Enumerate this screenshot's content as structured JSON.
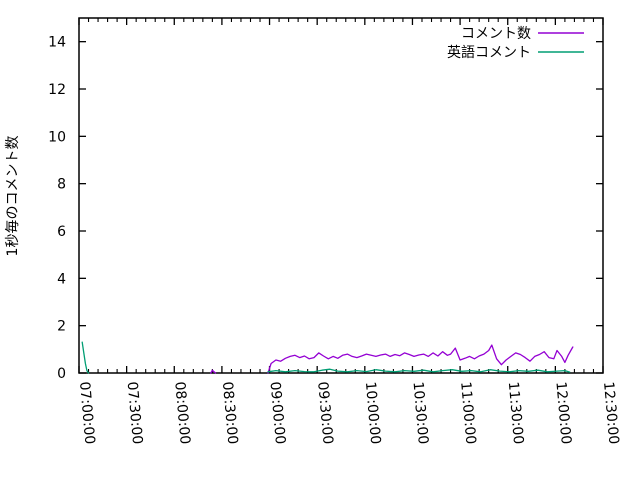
{
  "chart_data": {
    "type": "line",
    "title": "",
    "ylabel": "1秒毎のコメント数",
    "xlabel": "",
    "background_color": "#ffffff",
    "axis_color": "#000000",
    "grid": false,
    "legend": {
      "position": "top-right-inside",
      "entries": [
        "コメント数",
        "英語コメント"
      ]
    },
    "x_axis": {
      "unit": "time",
      "range_minutes": [
        0,
        330
      ],
      "tick_minutes": [
        0,
        30,
        60,
        90,
        120,
        150,
        180,
        210,
        240,
        270,
        300,
        330
      ],
      "tick_labels": [
        "07:00:00",
        "07:30:00",
        "08:00:00",
        "08:30:00",
        "09:00:00",
        "09:30:00",
        "10:00:00",
        "10:30:00",
        "11:00:00",
        "11:30:00",
        "12:00:00",
        "12:30:00"
      ],
      "minor_step_minutes": 6,
      "label_rotation_deg": 85
    },
    "y_axis": {
      "range": [
        0,
        15
      ],
      "ticks": [
        0,
        2,
        4,
        6,
        8,
        10,
        12,
        14
      ]
    },
    "series": [
      {
        "name": "コメント数",
        "color": "#9400d3",
        "segments": [
          [
            [
              83,
              0
            ],
            [
              84,
              0.12
            ],
            [
              85,
              0.05
            ],
            [
              86,
              0
            ]
          ],
          [
            [
              119,
              0
            ],
            [
              121,
              0.4
            ],
            [
              124,
              0.55
            ],
            [
              127,
              0.5
            ],
            [
              130,
              0.62
            ],
            [
              133,
              0.7
            ],
            [
              136,
              0.75
            ],
            [
              139,
              0.65
            ],
            [
              142,
              0.72
            ],
            [
              145,
              0.6
            ],
            [
              148,
              0.65
            ],
            [
              151,
              0.85
            ],
            [
              154,
              0.72
            ],
            [
              157,
              0.6
            ],
            [
              160,
              0.7
            ],
            [
              163,
              0.62
            ],
            [
              166,
              0.75
            ],
            [
              169,
              0.8
            ],
            [
              172,
              0.7
            ],
            [
              175,
              0.65
            ],
            [
              178,
              0.72
            ],
            [
              181,
              0.8
            ],
            [
              184,
              0.75
            ],
            [
              187,
              0.7
            ],
            [
              190,
              0.76
            ],
            [
              193,
              0.8
            ],
            [
              196,
              0.7
            ],
            [
              199,
              0.78
            ],
            [
              202,
              0.73
            ],
            [
              205,
              0.85
            ],
            [
              208,
              0.78
            ],
            [
              211,
              0.7
            ],
            [
              214,
              0.76
            ],
            [
              217,
              0.8
            ],
            [
              220,
              0.7
            ],
            [
              223,
              0.85
            ],
            [
              226,
              0.72
            ],
            [
              229,
              0.9
            ],
            [
              232,
              0.75
            ],
            [
              234,
              0.8
            ],
            [
              237,
              1.05
            ],
            [
              240,
              0.55
            ],
            [
              243,
              0.62
            ],
            [
              246,
              0.7
            ],
            [
              249,
              0.6
            ],
            [
              252,
              0.72
            ],
            [
              255,
              0.8
            ],
            [
              258,
              0.95
            ],
            [
              260,
              1.18
            ],
            [
              263,
              0.6
            ],
            [
              266,
              0.35
            ],
            [
              269,
              0.55
            ],
            [
              272,
              0.7
            ],
            [
              275,
              0.85
            ],
            [
              278,
              0.78
            ],
            [
              281,
              0.65
            ],
            [
              284,
              0.5
            ],
            [
              287,
              0.7
            ],
            [
              290,
              0.78
            ],
            [
              293,
              0.9
            ],
            [
              296,
              0.65
            ],
            [
              299,
              0.6
            ],
            [
              301,
              0.95
            ],
            [
              304,
              0.7
            ],
            [
              306,
              0.45
            ],
            [
              308,
              0.75
            ],
            [
              311,
              1.1
            ]
          ]
        ]
      },
      {
        "name": "英語コメント",
        "color": "#009e73",
        "segments": [
          [
            [
              2,
              1.3
            ],
            [
              3,
              0.85
            ],
            [
              4,
              0.4
            ],
            [
              5,
              0.1
            ],
            [
              6,
              0
            ]
          ],
          [
            [
              119,
              0.05
            ],
            [
              124,
              0.1
            ],
            [
              130,
              0.05
            ],
            [
              136,
              0.1
            ],
            [
              142,
              0.06
            ],
            [
              148,
              0.05
            ],
            [
              153,
              0.12
            ],
            [
              158,
              0.16
            ],
            [
              163,
              0.08
            ],
            [
              169,
              0.05
            ],
            [
              175,
              0.1
            ],
            [
              181,
              0.06
            ],
            [
              187,
              0.14
            ],
            [
              193,
              0.08
            ],
            [
              199,
              0.05
            ],
            [
              205,
              0.1
            ],
            [
              211,
              0.07
            ],
            [
              217,
              0.12
            ],
            [
              223,
              0.05
            ],
            [
              229,
              0.1
            ],
            [
              235,
              0.14
            ],
            [
              241,
              0.07
            ],
            [
              247,
              0.1
            ],
            [
              253,
              0.05
            ],
            [
              259,
              0.14
            ],
            [
              265,
              0.08
            ],
            [
              271,
              0.05
            ],
            [
              277,
              0.1
            ],
            [
              283,
              0.07
            ],
            [
              289,
              0.12
            ],
            [
              295,
              0.05
            ],
            [
              301,
              0.08
            ],
            [
              306,
              0.1
            ],
            [
              309,
              0.04
            ]
          ]
        ]
      }
    ]
  }
}
